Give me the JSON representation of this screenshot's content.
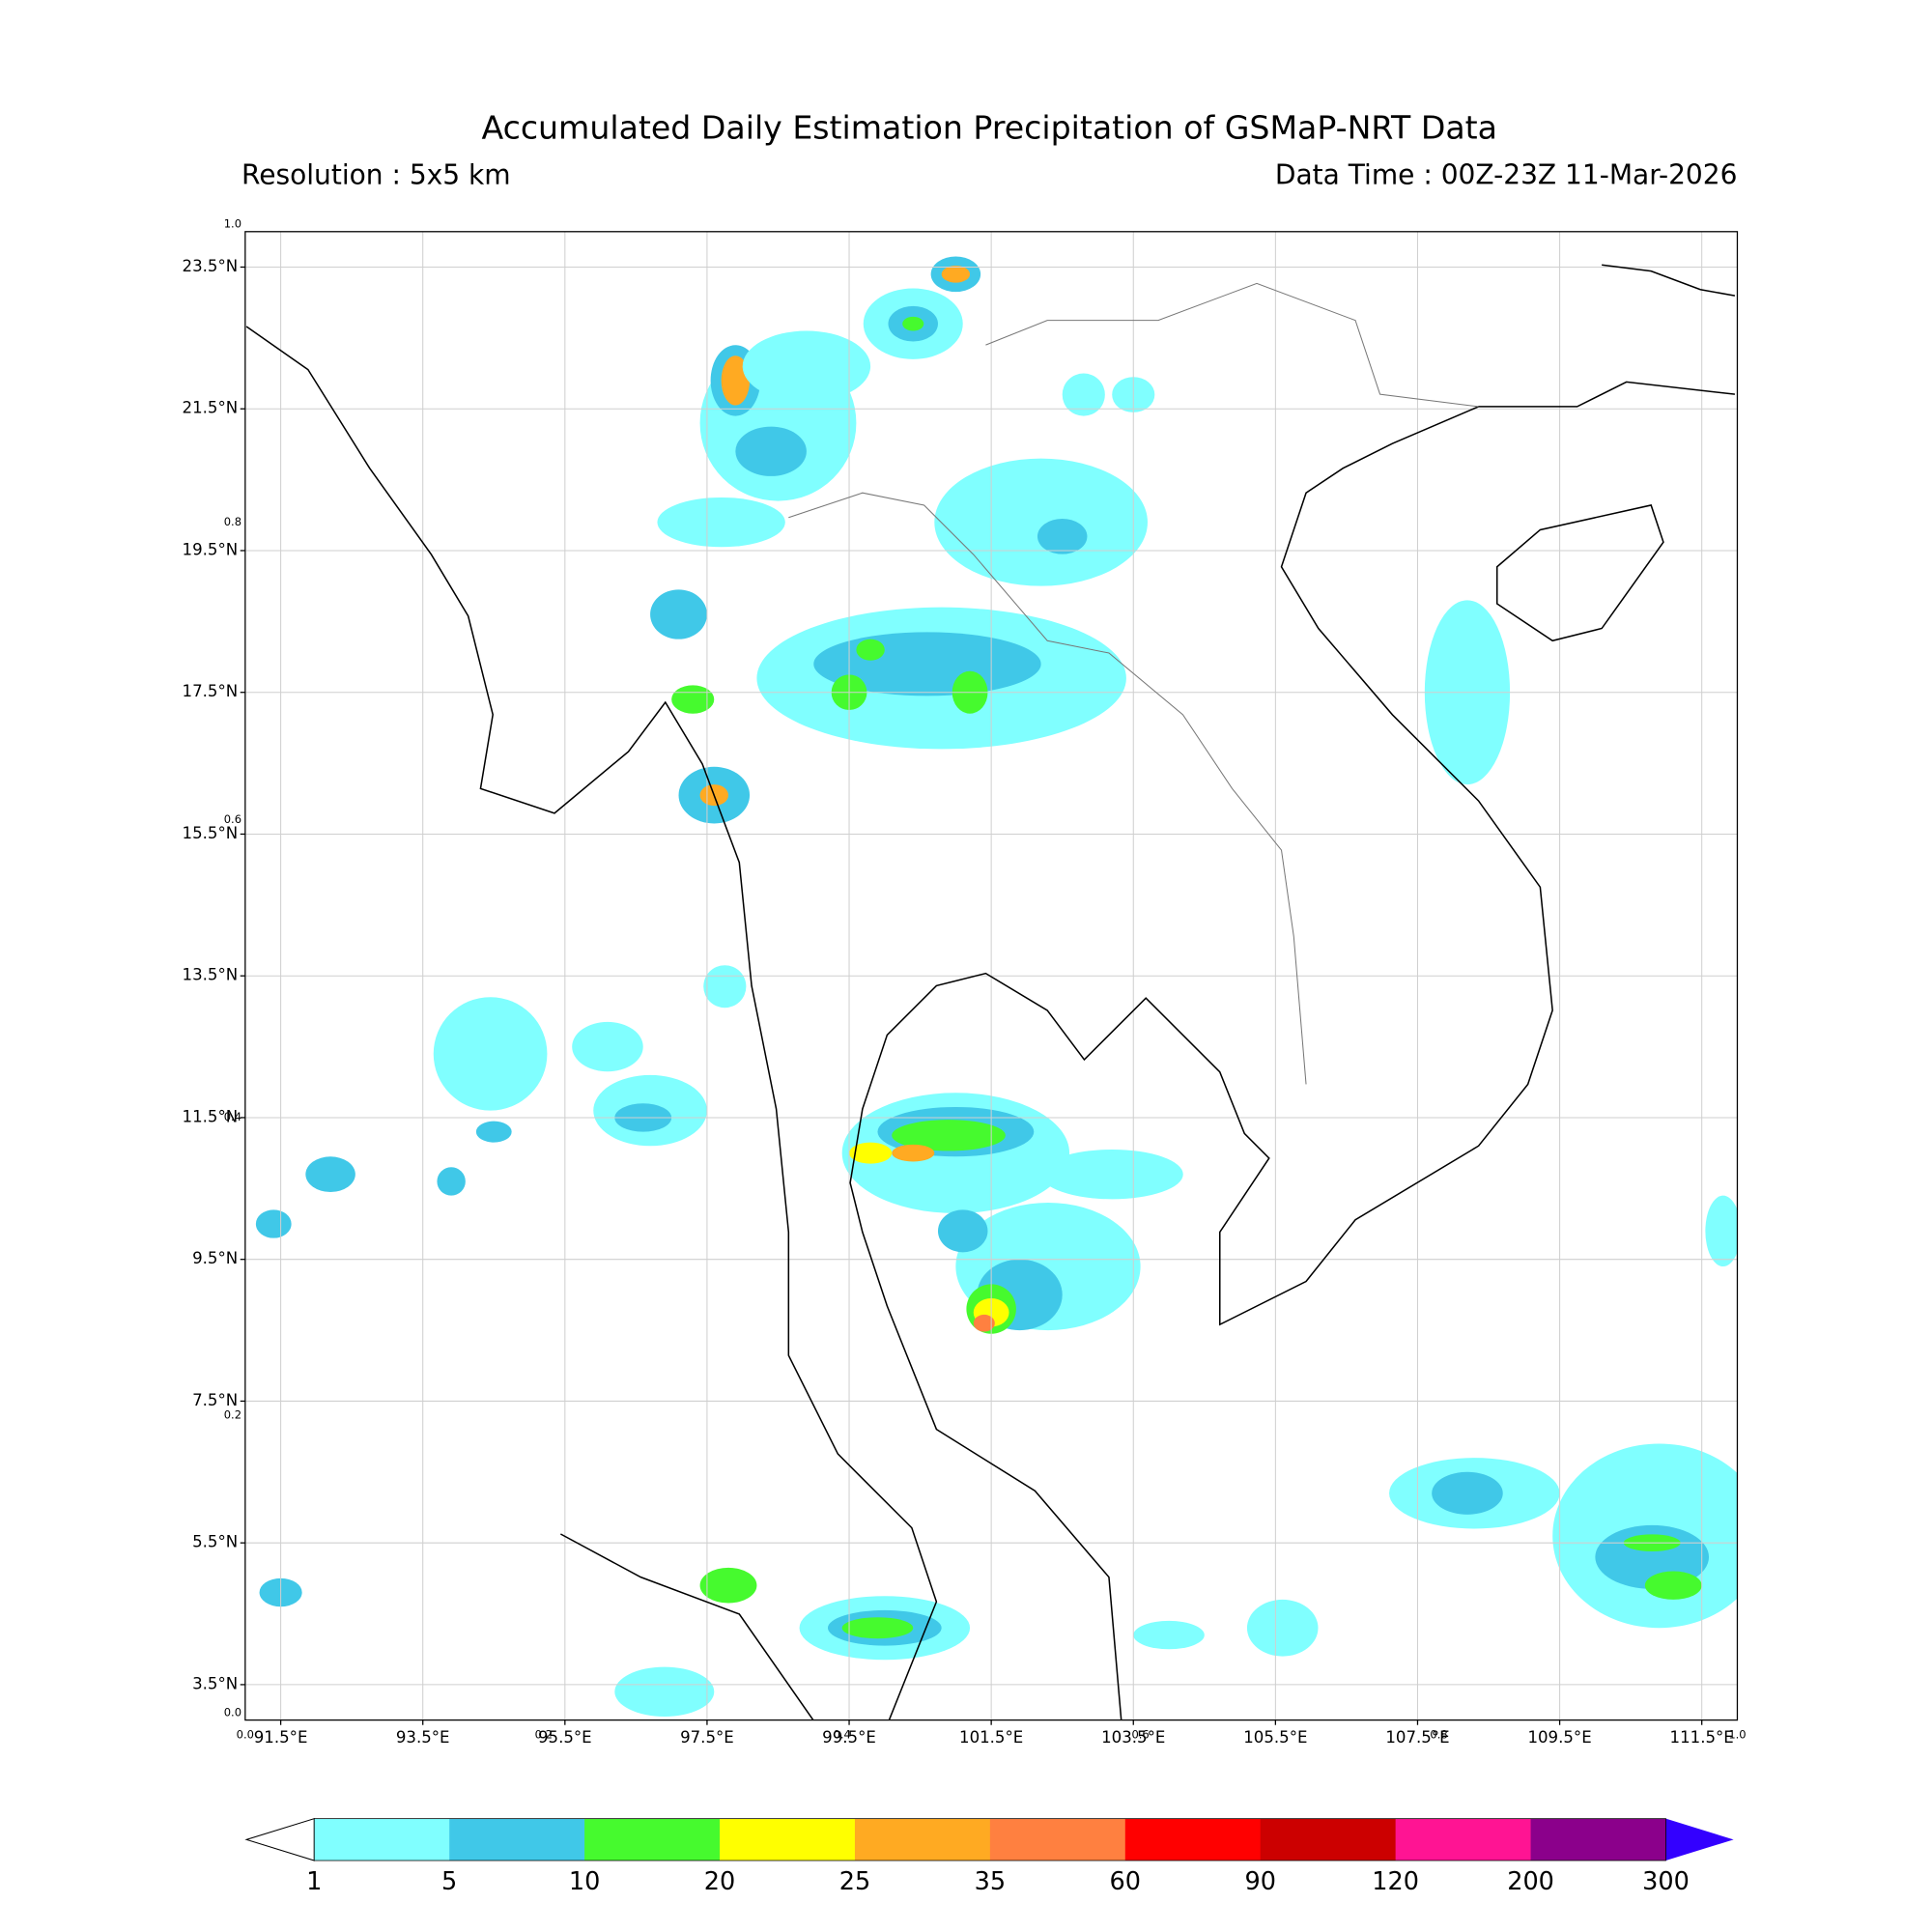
{
  "chart_data": {
    "type": "contour-map",
    "title": "Accumulated Daily Estimation Precipitation of GSMaP-NRT Data",
    "subtitle_left": "Resolution : 5x5 km",
    "subtitle_right": "Data Time : 00Z-23Z 11-Mar-2026",
    "xlim": [
      91,
      112
    ],
    "ylim": [
      3,
      24
    ],
    "xticks": [
      {
        "value": 91.5,
        "label": "91.5°E"
      },
      {
        "value": 93.5,
        "label": "93.5°E"
      },
      {
        "value": 95.5,
        "label": "95.5°E"
      },
      {
        "value": 97.5,
        "label": "97.5°E"
      },
      {
        "value": 99.5,
        "label": "99.5°E"
      },
      {
        "value": 101.5,
        "label": "101.5°E"
      },
      {
        "value": 103.5,
        "label": "103.5°E"
      },
      {
        "value": 105.5,
        "label": "105.5°E"
      },
      {
        "value": 107.5,
        "label": "107.5°E"
      },
      {
        "value": 109.5,
        "label": "109.5°E"
      },
      {
        "value": 111.5,
        "label": "111.5°E"
      }
    ],
    "yticks": [
      {
        "value": 3.5,
        "label": "3.5°N"
      },
      {
        "value": 5.5,
        "label": "5.5°N"
      },
      {
        "value": 7.5,
        "label": "7.5°N"
      },
      {
        "value": 9.5,
        "label": "9.5°N"
      },
      {
        "value": 11.5,
        "label": "11.5°N"
      },
      {
        "value": 13.5,
        "label": "13.5°N"
      },
      {
        "value": 15.5,
        "label": "15.5°N"
      },
      {
        "value": 17.5,
        "label": "17.5°N"
      },
      {
        "value": 19.5,
        "label": "19.5°N"
      },
      {
        "value": 21.5,
        "label": "21.5°N"
      },
      {
        "value": 23.5,
        "label": "23.5°N"
      }
    ],
    "x2lim": [
      0,
      1
    ],
    "x2ticks": [
      {
        "value": 0,
        "label": "0.0"
      },
      {
        "value": 0.2,
        "label": "0.2"
      },
      {
        "value": 0.4,
        "label": "0.4"
      },
      {
        "value": 0.6,
        "label": "0.6"
      },
      {
        "value": 0.8,
        "label": "0.8"
      },
      {
        "value": 1,
        "label": "1.0"
      }
    ],
    "y2lim": [
      0,
      1
    ],
    "y2ticks": [
      {
        "value": 0,
        "label": "0.0"
      },
      {
        "value": 0.2,
        "label": "0.2"
      },
      {
        "value": 0.4,
        "label": "0.4"
      },
      {
        "value": 0.6,
        "label": "0.6"
      },
      {
        "value": 0.8,
        "label": "0.8"
      },
      {
        "value": 1,
        "label": "1.0"
      }
    ],
    "grid": true,
    "colorbar": {
      "levels": [
        1,
        5,
        10,
        20,
        25,
        35,
        60,
        90,
        120,
        200,
        300
      ],
      "colors": [
        "#80ffff",
        "#40c8e8",
        "#46fa2e",
        "#ffff00",
        "#ffaa22",
        "#ff8040",
        "#ff0000",
        "#cc0000",
        "#ff1493",
        "#8b008b"
      ],
      "under_color": "#ffffff",
      "over_color": "#3300ff"
    }
  }
}
